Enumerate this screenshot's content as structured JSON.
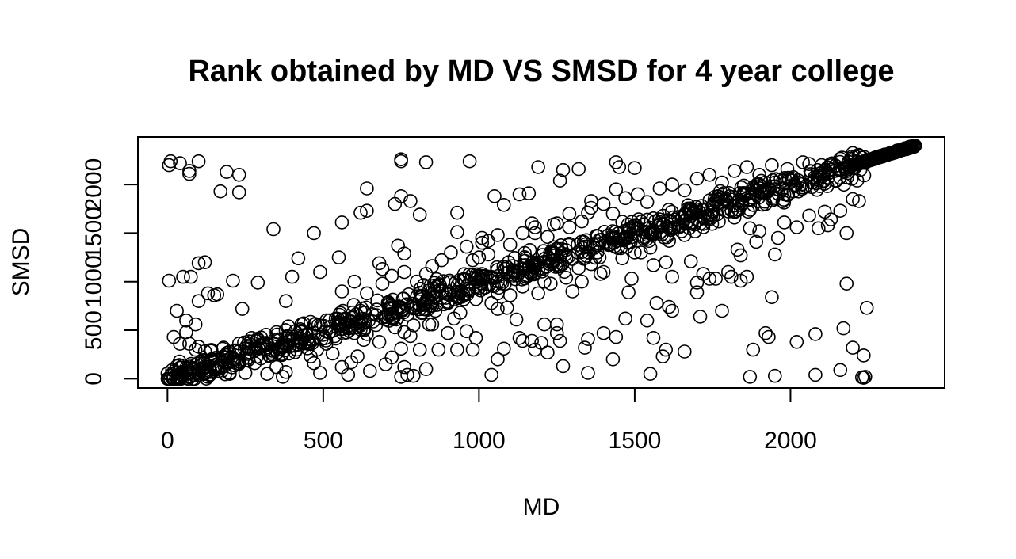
{
  "chart_data": {
    "type": "scatter",
    "title": "Rank obtained by MD VS SMSD for 4 year college",
    "xlabel": "MD",
    "ylabel": "SMSD",
    "xlim": [
      -95,
      2495
    ],
    "ylim": [
      -95,
      2490
    ],
    "x_ticks": [
      0,
      500,
      1000,
      1500,
      2000
    ],
    "x_tick_labels": [
      "0",
      "500",
      "1000",
      "1500",
      "2000"
    ],
    "y_ticks": [
      0,
      500,
      1000,
      1500,
      2000
    ],
    "y_tick_labels": [
      "0",
      "500",
      "1000",
      "1500",
      "2000"
    ],
    "grid": false,
    "legend": "none",
    "marker": "open-circle",
    "marker_color": "#000000",
    "points": [
      [
        2230,
        15
      ],
      [
        2240,
        20
      ],
      [
        2235,
        10
      ],
      [
        2245,
        730
      ],
      [
        2235,
        240
      ],
      [
        2160,
        90
      ],
      [
        2180,
        980
      ],
      [
        2170,
        520
      ],
      [
        2200,
        320
      ],
      [
        2080,
        40
      ],
      [
        2080,
        460
      ],
      [
        2020,
        380
      ],
      [
        1950,
        30
      ],
      [
        1870,
        20
      ],
      [
        1880,
        300
      ],
      [
        1930,
        430
      ],
      [
        1920,
        470
      ],
      [
        1940,
        840
      ],
      [
        1710,
        640
      ],
      [
        1700,
        890
      ],
      [
        1780,
        700
      ],
      [
        1660,
        280
      ],
      [
        1740,
        1030
      ],
      [
        1840,
        1010
      ],
      [
        1860,
        1050
      ],
      [
        1810,
        1050
      ],
      [
        1590,
        230
      ],
      [
        1620,
        700
      ],
      [
        1560,
        420
      ],
      [
        1550,
        50
      ],
      [
        1540,
        600
      ],
      [
        1570,
        780
      ],
      [
        1600,
        300
      ],
      [
        1610,
        740
      ],
      [
        1350,
        60
      ],
      [
        1340,
        320
      ],
      [
        1350,
        410
      ],
      [
        1400,
        470
      ],
      [
        1430,
        200
      ],
      [
        1470,
        620
      ],
      [
        1480,
        890
      ],
      [
        1490,
        1030
      ],
      [
        1440,
        430
      ],
      [
        1270,
        130
      ],
      [
        1260,
        390
      ],
      [
        1250,
        470
      ],
      [
        1250,
        560
      ],
      [
        1220,
        270
      ],
      [
        1210,
        560
      ],
      [
        1180,
        300
      ],
      [
        1200,
        370
      ],
      [
        1170,
        390
      ],
      [
        1140,
        390
      ],
      [
        1040,
        40
      ],
      [
        1060,
        200
      ],
      [
        1080,
        310
      ],
      [
        1130,
        420
      ],
      [
        1120,
        610
      ],
      [
        1090,
        730
      ],
      [
        1060,
        720
      ],
      [
        1060,
        880
      ],
      [
        980,
        300
      ],
      [
        990,
        420
      ],
      [
        960,
        490
      ],
      [
        930,
        300
      ],
      [
        920,
        620
      ],
      [
        900,
        470
      ],
      [
        870,
        300
      ],
      [
        850,
        560
      ],
      [
        840,
        560
      ],
      [
        760,
        120
      ],
      [
        770,
        40
      ],
      [
        750,
        20
      ],
      [
        790,
        30
      ],
      [
        830,
        100
      ],
      [
        810,
        300
      ],
      [
        750,
        310
      ],
      [
        780,
        440
      ],
      [
        760,
        480
      ],
      [
        700,
        150
      ],
      [
        720,
        220
      ],
      [
        650,
        80
      ],
      [
        630,
        400
      ],
      [
        640,
        460
      ],
      [
        610,
        230
      ],
      [
        560,
        120
      ],
      [
        580,
        40
      ],
      [
        590,
        170
      ],
      [
        530,
        260
      ],
      [
        490,
        60
      ],
      [
        470,
        160
      ],
      [
        460,
        230
      ],
      [
        370,
        20
      ],
      [
        380,
        70
      ],
      [
        350,
        120
      ],
      [
        320,
        50
      ],
      [
        300,
        210
      ],
      [
        280,
        160
      ],
      [
        250,
        60
      ],
      [
        200,
        50
      ],
      [
        190,
        250
      ],
      [
        180,
        320
      ],
      [
        150,
        100
      ],
      [
        130,
        20
      ],
      [
        120,
        50
      ],
      [
        110,
        180
      ],
      [
        100,
        330
      ],
      [
        80,
        60
      ],
      [
        70,
        20
      ],
      [
        60,
        110
      ],
      [
        50,
        60
      ],
      [
        40,
        20
      ],
      [
        30,
        130
      ],
      [
        20,
        10
      ],
      [
        15,
        90
      ],
      [
        10,
        30
      ],
      [
        5,
        1010
      ],
      [
        30,
        700
      ],
      [
        60,
        600
      ],
      [
        90,
        560
      ],
      [
        100,
        800
      ],
      [
        120,
        1200
      ],
      [
        150,
        860
      ],
      [
        210,
        1010
      ],
      [
        240,
        720
      ],
      [
        290,
        990
      ],
      [
        380,
        800
      ],
      [
        400,
        1050
      ],
      [
        420,
        1240
      ],
      [
        60,
        480
      ],
      [
        40,
        360
      ],
      [
        70,
        360
      ],
      [
        90,
        300
      ],
      [
        50,
        1050
      ],
      [
        75,
        1050
      ],
      [
        100,
        1190
      ],
      [
        130,
        880
      ],
      [
        160,
        870
      ],
      [
        20,
        430
      ],
      [
        5,
        2200
      ],
      [
        10,
        2240
      ],
      [
        40,
        2220
      ],
      [
        70,
        2110
      ],
      [
        70,
        2140
      ],
      [
        100,
        2240
      ],
      [
        170,
        1930
      ],
      [
        190,
        2130
      ],
      [
        230,
        2100
      ],
      [
        230,
        1920
      ],
      [
        340,
        1540
      ],
      [
        470,
        1500
      ],
      [
        490,
        1100
      ],
      [
        560,
        1610
      ],
      [
        550,
        1250
      ],
      [
        620,
        1710
      ],
      [
        640,
        1960
      ],
      [
        640,
        1730
      ],
      [
        680,
        1190
      ],
      [
        690,
        1130
      ],
      [
        730,
        1800
      ],
      [
        750,
        1880
      ],
      [
        750,
        2260
      ],
      [
        750,
        2240
      ],
      [
        780,
        1830
      ],
      [
        760,
        1290
      ],
      [
        740,
        1370
      ],
      [
        810,
        1690
      ],
      [
        830,
        2230
      ],
      [
        830,
        1080
      ],
      [
        930,
        1710
      ],
      [
        930,
        1510
      ],
      [
        970,
        2240
      ],
      [
        980,
        1220
      ],
      [
        1010,
        1450
      ],
      [
        1010,
        1400
      ],
      [
        1030,
        1280
      ],
      [
        1050,
        1880
      ],
      [
        1080,
        1790
      ],
      [
        1130,
        1900
      ],
      [
        1160,
        1910
      ],
      [
        1170,
        1600
      ],
      [
        1180,
        1500
      ],
      [
        1190,
        2180
      ],
      [
        1240,
        1590
      ],
      [
        1260,
        2040
      ],
      [
        1270,
        2150
      ],
      [
        1290,
        1560
      ],
      [
        1320,
        2160
      ],
      [
        1350,
        1710
      ],
      [
        1360,
        1830
      ],
      [
        1390,
        1080
      ],
      [
        1440,
        2230
      ],
      [
        1440,
        1950
      ],
      [
        1450,
        2180
      ],
      [
        1500,
        2170
      ],
      [
        1520,
        1300
      ],
      [
        1560,
        1170
      ],
      [
        1600,
        1200
      ],
      [
        1620,
        1050
      ],
      [
        1650,
        1520
      ],
      [
        1680,
        1210
      ],
      [
        1700,
        990
      ],
      [
        1720,
        1080
      ],
      [
        1760,
        1030
      ],
      [
        1800,
        1100
      ],
      [
        1830,
        1330
      ],
      [
        1840,
        1270
      ],
      [
        1870,
        1550
      ],
      [
        1890,
        1410
      ],
      [
        1900,
        1520
      ],
      [
        1950,
        1280
      ],
      [
        2020,
        1560
      ],
      [
        2090,
        1550
      ],
      [
        2120,
        1580
      ],
      [
        2130,
        1640
      ],
      [
        2180,
        1500
      ],
      [
        2200,
        1850
      ],
      [
        2220,
        1830
      ],
      [
        2160,
        1730
      ],
      [
        2110,
        1720
      ],
      [
        2060,
        1680
      ],
      [
        1980,
        1610
      ],
      [
        1960,
        1450
      ],
      [
        260,
        330
      ],
      [
        270,
        420
      ],
      [
        310,
        360
      ],
      [
        330,
        230
      ],
      [
        350,
        480
      ],
      [
        390,
        260
      ],
      [
        410,
        340
      ],
      [
        430,
        560
      ],
      [
        450,
        410
      ],
      [
        480,
        300
      ],
      [
        510,
        360
      ],
      [
        520,
        480
      ],
      [
        540,
        620
      ],
      [
        570,
        560
      ],
      [
        600,
        470
      ],
      [
        620,
        700
      ],
      [
        660,
        590
      ],
      [
        680,
        380
      ],
      [
        700,
        610
      ],
      [
        730,
        530
      ],
      [
        770,
        660
      ],
      [
        790,
        550
      ],
      [
        820,
        760
      ],
      [
        860,
        700
      ],
      [
        880,
        900
      ],
      [
        900,
        780
      ],
      [
        940,
        680
      ],
      [
        950,
        860
      ],
      [
        970,
        1000
      ],
      [
        990,
        820
      ],
      [
        1020,
        940
      ],
      [
        1040,
        780
      ],
      [
        1070,
        1000
      ],
      [
        1100,
        860
      ],
      [
        1110,
        1070
      ],
      [
        1140,
        950
      ],
      [
        1160,
        1150
      ],
      [
        1190,
        880
      ],
      [
        1210,
        1000
      ],
      [
        1230,
        980
      ],
      [
        1260,
        1160
      ],
      [
        1280,
        1040
      ],
      [
        1300,
        900
      ],
      [
        1320,
        1140
      ],
      [
        1330,
        1000
      ],
      [
        1360,
        1180
      ],
      [
        1380,
        1300
      ],
      [
        1400,
        1100
      ],
      [
        1420,
        1380
      ],
      [
        1460,
        1240
      ],
      [
        1480,
        1400
      ],
      [
        1500,
        1300
      ],
      [
        1530,
        1460
      ],
      [
        1550,
        1350
      ],
      [
        1580,
        1560
      ],
      [
        1610,
        1420
      ],
      [
        1630,
        1640
      ],
      [
        1660,
        1480
      ],
      [
        1690,
        1700
      ],
      [
        1720,
        1560
      ],
      [
        1750,
        1780
      ],
      [
        1770,
        1620
      ],
      [
        1790,
        1840
      ],
      [
        1820,
        1660
      ],
      [
        1850,
        1900
      ],
      [
        1870,
        1740
      ],
      [
        1900,
        1960
      ],
      [
        1920,
        1800
      ],
      [
        1950,
        2020
      ],
      [
        1980,
        1900
      ],
      [
        560,
        900
      ],
      [
        600,
        1000
      ],
      [
        640,
        880
      ],
      [
        690,
        980
      ],
      [
        720,
        1060
      ],
      [
        760,
        1100
      ],
      [
        800,
        1000
      ],
      [
        850,
        1160
      ],
      [
        880,
        1220
      ],
      [
        910,
        1300
      ],
      [
        960,
        1360
      ],
      [
        1000,
        1250
      ],
      [
        1030,
        1420
      ],
      [
        1060,
        1480
      ],
      [
        1100,
        1380
      ],
      [
        1140,
        1500
      ],
      [
        1180,
        1560
      ],
      [
        1220,
        1460
      ],
      [
        1250,
        1600
      ],
      [
        1290,
        1700
      ],
      [
        1330,
        1620
      ],
      [
        1360,
        1760
      ],
      [
        1400,
        1800
      ],
      [
        1430,
        1700
      ],
      [
        1470,
        1860
      ],
      [
        1510,
        1900
      ],
      [
        1540,
        1820
      ],
      [
        1580,
        1960
      ],
      [
        1620,
        2000
      ],
      [
        1660,
        1940
      ],
      [
        1700,
        2060
      ],
      [
        1740,
        2100
      ],
      [
        1780,
        2020
      ],
      [
        1820,
        2140
      ],
      [
        1860,
        2180
      ],
      [
        1900,
        2100
      ],
      [
        1940,
        2200
      ],
      [
        1990,
        2160
      ],
      [
        2040,
        2230
      ],
      [
        2100,
        2200
      ]
    ]
  }
}
